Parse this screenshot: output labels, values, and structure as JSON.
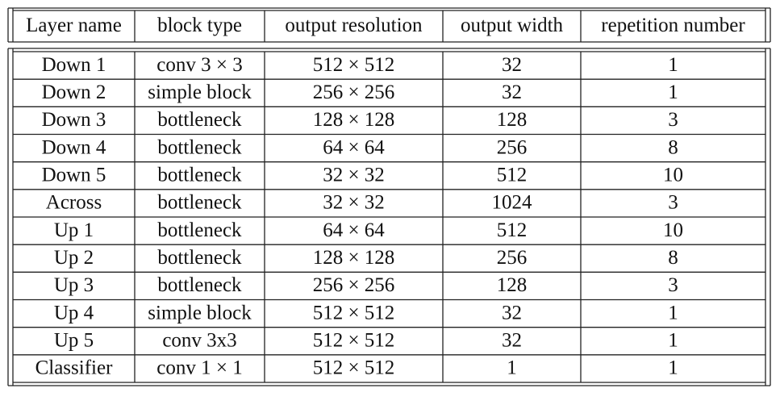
{
  "table": {
    "header": [
      "Layer name",
      "block type",
      "output resolution",
      "output width",
      "repetition number"
    ],
    "rows": [
      [
        "Down 1",
        "conv 3 × 3",
        "512 × 512",
        "32",
        "1"
      ],
      [
        "Down 2",
        "simple block",
        "256 × 256",
        "32",
        "1"
      ],
      [
        "Down 3",
        "bottleneck",
        "128 × 128",
        "128",
        "3"
      ],
      [
        "Down 4",
        "bottleneck",
        "64 × 64",
        "256",
        "8"
      ],
      [
        "Down 5",
        "bottleneck",
        "32 × 32",
        "512",
        "10"
      ],
      [
        "Across",
        "bottleneck",
        "32 × 32",
        "1024",
        "3"
      ],
      [
        "Up 1",
        "bottleneck",
        "64 × 64",
        "512",
        "10"
      ],
      [
        "Up 2",
        "bottleneck",
        "128 × 128",
        "256",
        "8"
      ],
      [
        "Up 3",
        "bottleneck",
        "256 × 256",
        "128",
        "3"
      ],
      [
        "Up 4",
        "simple block",
        "512 × 512",
        "32",
        "1"
      ],
      [
        "Up 5",
        "conv 3x3",
        "512 × 512",
        "32",
        "1"
      ],
      [
        "Classifier",
        "conv 1 × 1",
        "512 × 512",
        "1",
        "1"
      ]
    ]
  }
}
